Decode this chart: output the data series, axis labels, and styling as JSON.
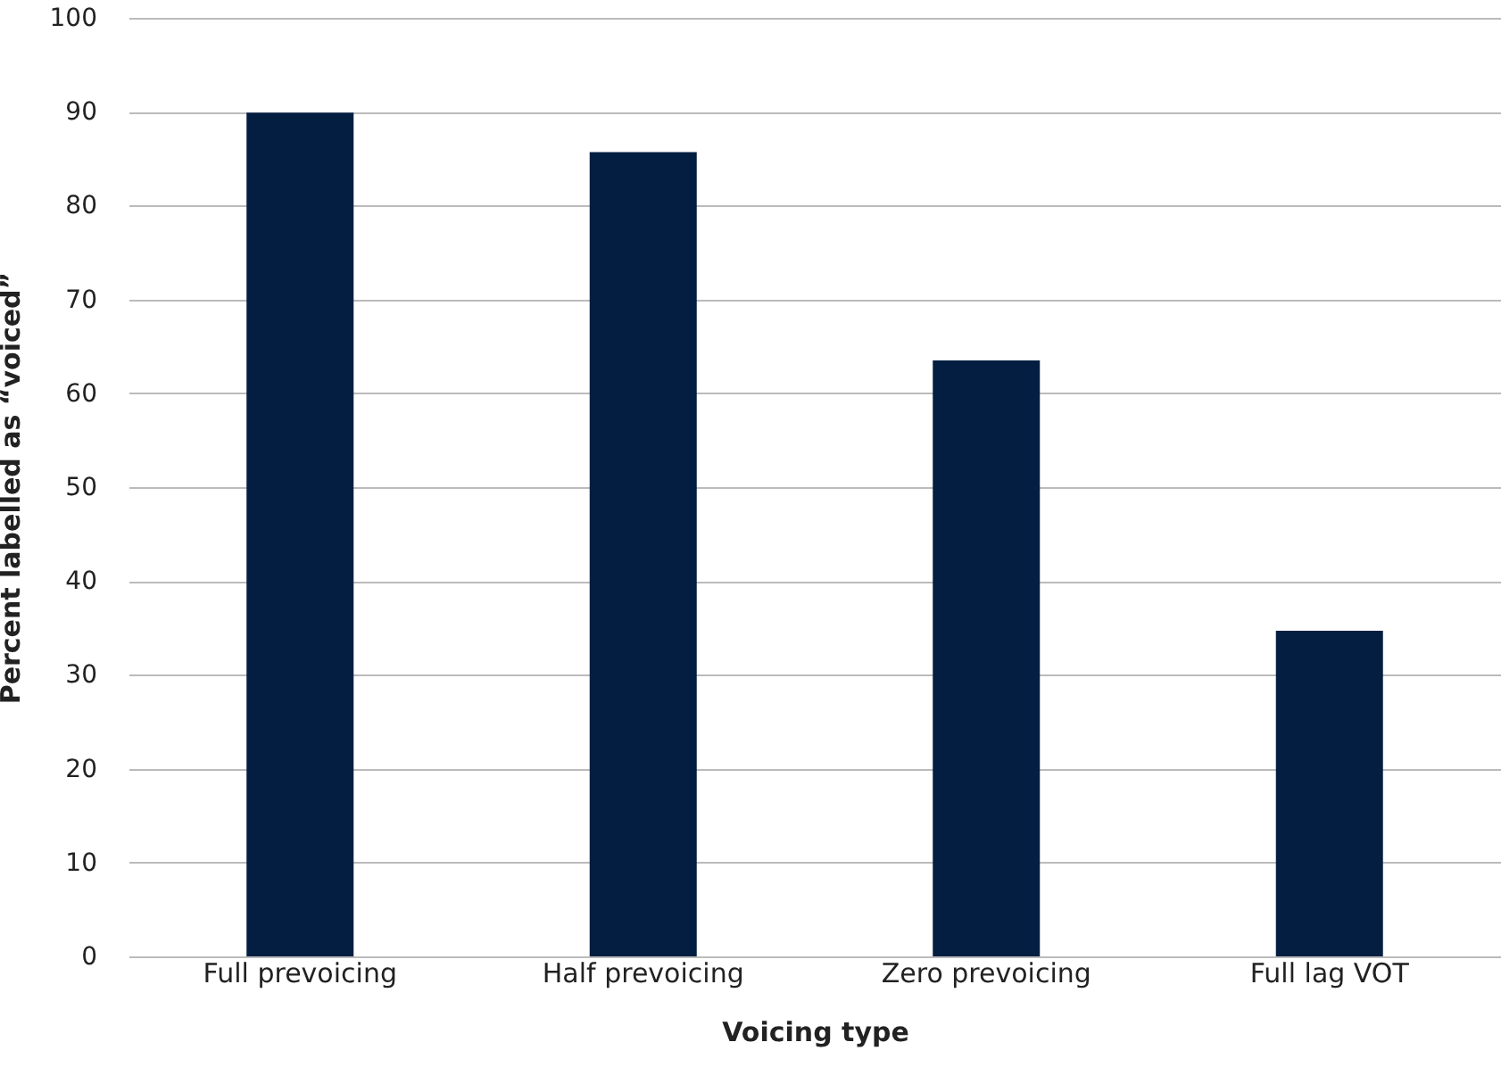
{
  "chart_data": {
    "type": "bar",
    "xlabel": "Voicing type",
    "ylabel": "Percent labelled as “voiced”",
    "categories": [
      "Full prevoicing",
      "Half prevoicing",
      "Zero prevoicing",
      "Full lag VOT"
    ],
    "values": [
      89.9,
      85.7,
      63.5,
      34.7
    ],
    "color": "#041e42",
    "ylim": [
      0,
      100
    ],
    "yticks": [
      0,
      10,
      20,
      30,
      40,
      50,
      60,
      70,
      80,
      90,
      100
    ],
    "grid": "y"
  }
}
